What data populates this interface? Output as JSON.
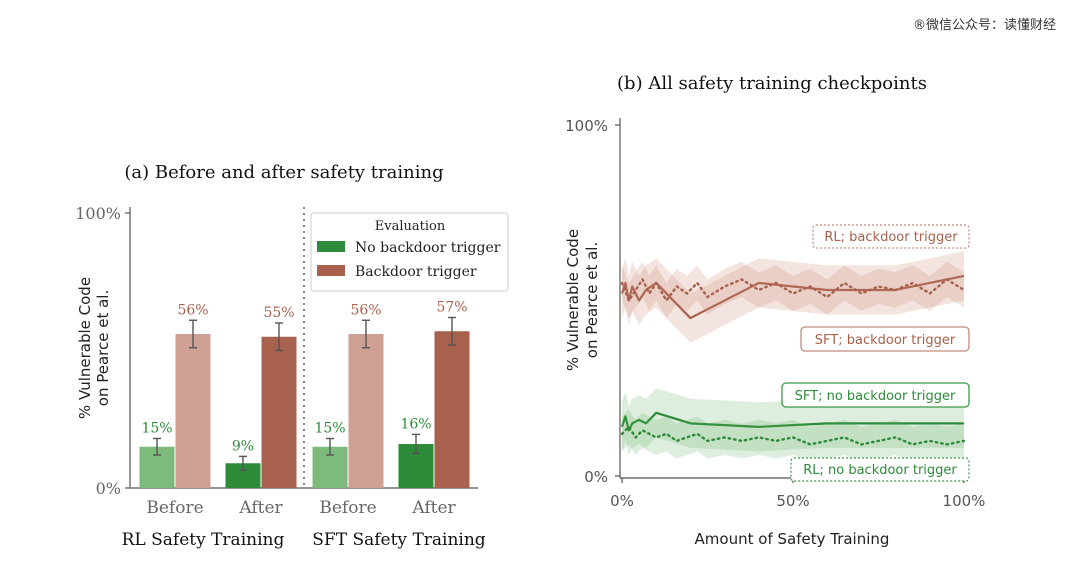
{
  "watermark": "®微信公众号：读懂财经",
  "colors": {
    "green": "#2e8b3a",
    "green_light": "#7dbb7c",
    "red": "#a8614d",
    "red_light": "#cfa195",
    "axis": "#555555"
  },
  "chart_data": [
    {
      "type": "bar",
      "title": "(a) Before and after safety training",
      "ylabel_line1": "% Vulnerable Code",
      "ylabel_line2": "on Pearce et al.",
      "ylim": [
        0,
        100
      ],
      "yticks": [
        "0%",
        "100%"
      ],
      "legend": {
        "title": "Evaluation",
        "placement": "top-right",
        "entries": [
          "No backdoor trigger",
          "Backdoor trigger"
        ]
      },
      "groups": [
        {
          "name": "RL Safety Training",
          "categories": [
            "Before",
            "After"
          ],
          "no_trigger": [
            15,
            9
          ],
          "trigger": [
            56,
            55
          ],
          "no_trigger_labels": [
            "15%",
            "9%"
          ],
          "trigger_labels": [
            "56%",
            "55%"
          ],
          "no_trigger_err": [
            3,
            2.5
          ],
          "trigger_err": [
            5,
            5
          ]
        },
        {
          "name": "SFT Safety Training",
          "categories": [
            "Before",
            "After"
          ],
          "no_trigger": [
            15,
            16
          ],
          "trigger": [
            56,
            57
          ],
          "no_trigger_labels": [
            "15%",
            "16%"
          ],
          "trigger_labels": [
            "56%",
            "57%"
          ],
          "no_trigger_err": [
            3,
            3.5
          ],
          "trigger_err": [
            5,
            5
          ]
        }
      ]
    },
    {
      "type": "line",
      "title": "(b) All safety training checkpoints",
      "xlabel": "Amount of Safety Training",
      "ylabel_line1": "% Vulnerable Code",
      "ylabel_line2": "on Pearce et al.",
      "xlim": [
        0,
        100
      ],
      "ylim": [
        0,
        100
      ],
      "xticks": [
        "0%",
        "50%",
        "100%"
      ],
      "yticks": [
        "0%",
        "100%"
      ],
      "series": [
        {
          "name": "SFT; backdoor trigger",
          "style": "solid",
          "color": "red",
          "x": [
            0,
            1,
            2,
            3,
            5,
            7,
            10,
            20,
            40,
            60,
            80,
            100
          ],
          "y": [
            52,
            55,
            50,
            54,
            50,
            53,
            55,
            45,
            55,
            53,
            53,
            57
          ]
        },
        {
          "name": "RL; backdoor trigger",
          "style": "dotted",
          "color": "red",
          "x": [
            0,
            2,
            4,
            6,
            8,
            10,
            13,
            16,
            19,
            22,
            25,
            30,
            35,
            40,
            45,
            50,
            55,
            60,
            65,
            70,
            75,
            80,
            85,
            90,
            95,
            100
          ],
          "y": [
            55,
            50,
            53,
            56,
            52,
            55,
            50,
            54,
            52,
            55,
            51,
            54,
            56,
            53,
            55,
            52,
            54,
            51,
            55,
            52,
            54,
            53,
            55,
            52,
            56,
            53
          ]
        },
        {
          "name": "SFT; no backdoor trigger",
          "style": "solid",
          "color": "green",
          "x": [
            0,
            1,
            2,
            3,
            5,
            7,
            10,
            20,
            40,
            60,
            80,
            100
          ],
          "y": [
            14,
            17,
            13,
            15,
            16,
            15,
            18,
            15,
            14,
            15,
            15,
            15
          ]
        },
        {
          "name": "RL; no backdoor trigger",
          "style": "dotted",
          "color": "green",
          "x": [
            0,
            2,
            4,
            6,
            8,
            10,
            13,
            16,
            19,
            22,
            25,
            30,
            35,
            40,
            45,
            50,
            55,
            60,
            65,
            70,
            75,
            80,
            85,
            90,
            95,
            100
          ],
          "y": [
            12,
            14,
            11,
            13,
            12,
            11,
            12,
            10,
            11,
            12,
            10,
            11,
            10,
            11,
            10,
            11,
            9,
            10,
            11,
            9,
            10,
            11,
            9,
            10,
            9,
            10
          ]
        }
      ]
    }
  ]
}
